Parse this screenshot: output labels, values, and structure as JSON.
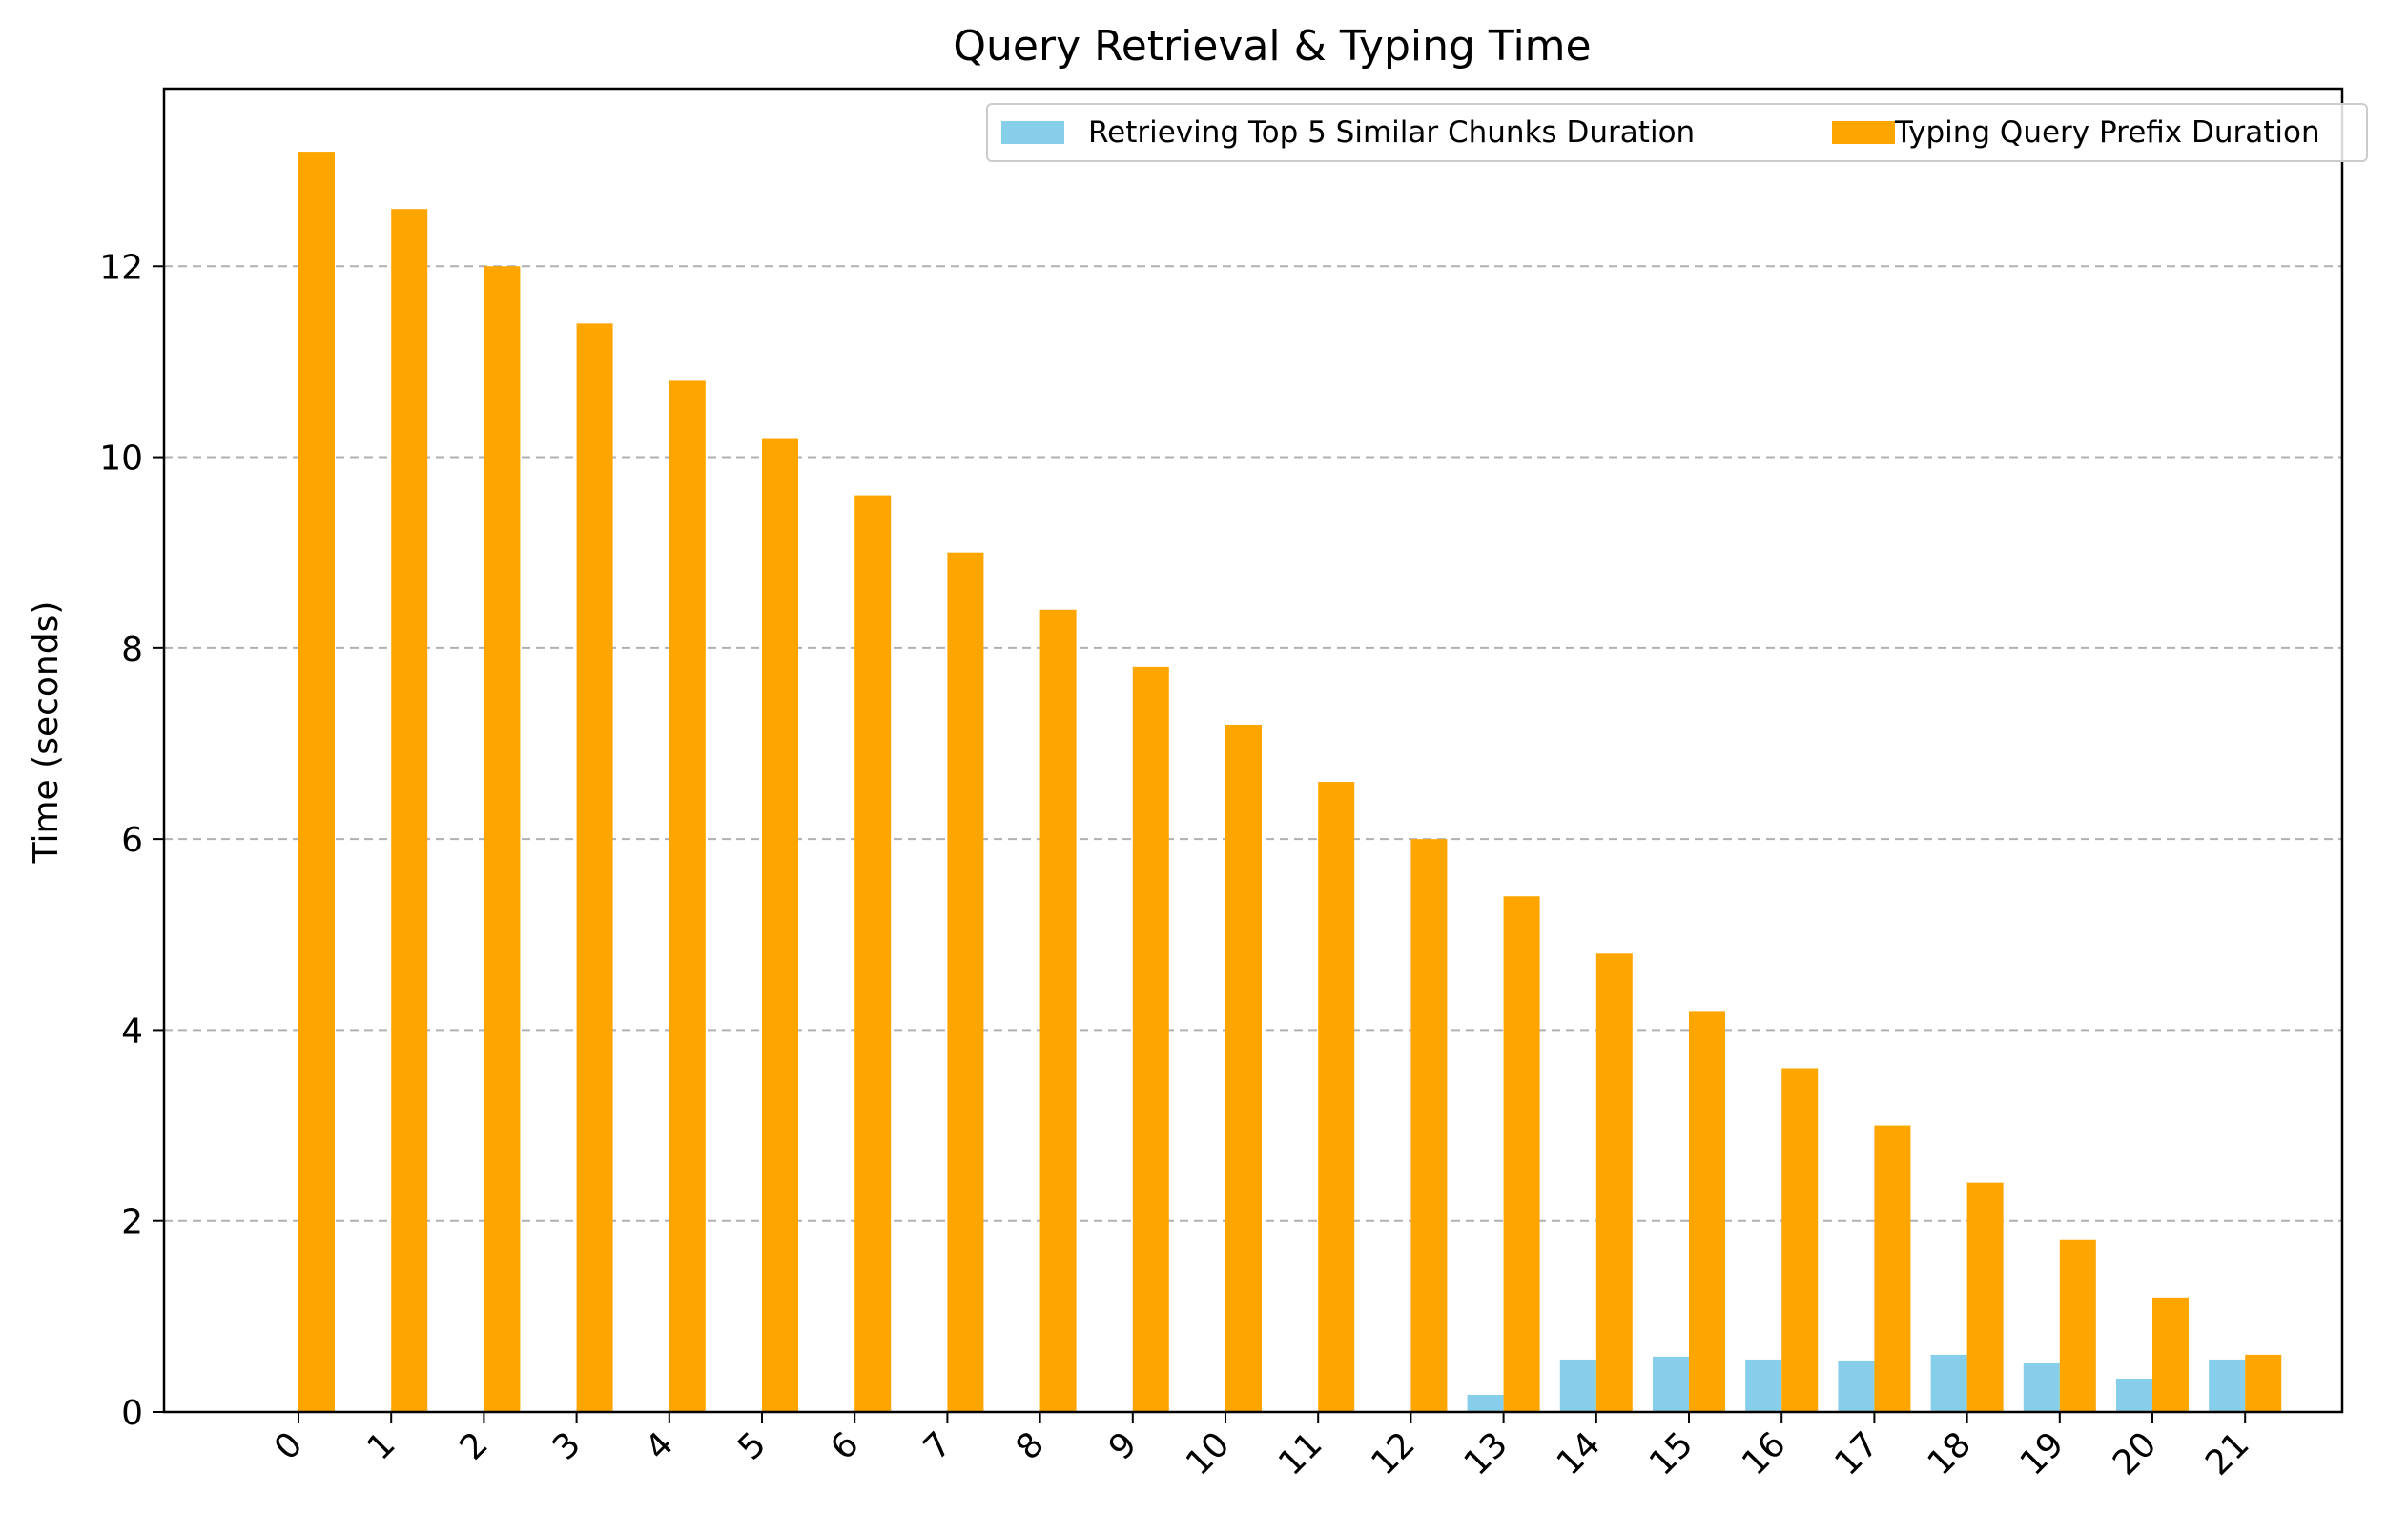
{
  "chart_data": {
    "type": "bar",
    "title": "Query Retrieval & Typing Time",
    "xlabel": "",
    "ylabel": "Time (seconds)",
    "categories": [
      "0",
      "1",
      "2",
      "3",
      "4",
      "5",
      "6",
      "7",
      "8",
      "9",
      "10",
      "11",
      "12",
      "13",
      "14",
      "15",
      "16",
      "17",
      "18",
      "19",
      "20",
      "21"
    ],
    "series": [
      {
        "name": "Retrieving Top 5 Similar Chunks Duration",
        "color": "#87CEEB",
        "values": [
          0,
          0,
          0,
          0,
          0,
          0,
          0,
          0,
          0,
          0,
          0,
          0,
          0,
          0.18,
          0.55,
          0.58,
          0.55,
          0.53,
          0.6,
          0.51,
          0.35,
          0.55
        ]
      },
      {
        "name": "Typing Query Prefix Duration",
        "color": "#FFA500",
        "values": [
          13.2,
          12.6,
          12.0,
          11.4,
          10.8,
          10.2,
          9.6,
          9.0,
          8.4,
          7.8,
          7.2,
          6.6,
          6.0,
          5.4,
          4.8,
          4.2,
          3.6,
          3.0,
          2.4,
          1.8,
          1.2,
          0.6
        ]
      }
    ],
    "yticks": [
      0,
      2,
      4,
      6,
      8,
      10,
      12
    ],
    "ylim": [
      0,
      13.86
    ],
    "grid": "y-dashed",
    "legend_position": "top-right"
  }
}
